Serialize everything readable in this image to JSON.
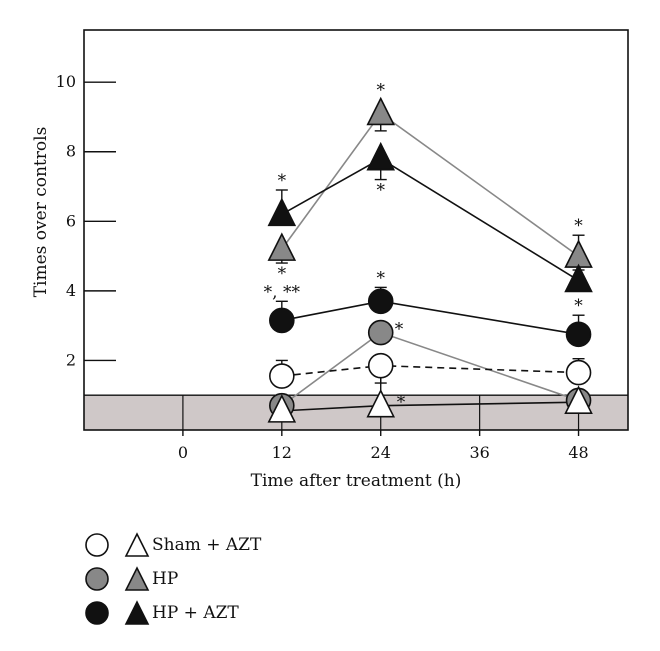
{
  "chart_data": {
    "type": "line",
    "xlabel": "Time after treatment (h)",
    "ylabel": "Times over controls",
    "xlim": [
      -12,
      54
    ],
    "ylim": [
      0,
      11.5
    ],
    "x_ticks": [
      0,
      12,
      24,
      36,
      48
    ],
    "y_ticks": [
      2,
      4,
      6,
      8,
      10
    ],
    "control_band": [
      0,
      1
    ],
    "grid": false,
    "legend_position": "bottom-left",
    "series": [
      {
        "name": "HP",
        "marker": "triangle",
        "fill": "#888888",
        "line": "#888888",
        "dash": false,
        "x": [
          12,
          24,
          48
        ],
        "y": [
          5.2,
          9.1,
          5.0
        ],
        "err": [
          0.4,
          0.5,
          0.6
        ],
        "err_dir": [
          "down",
          "down",
          "up"
        ],
        "stars": [
          "*",
          "*",
          "*"
        ],
        "star_pos": [
          "below",
          "above",
          "above"
        ]
      },
      {
        "name": "HP + AZT",
        "marker": "triangle",
        "fill": "#111111",
        "line": "#111111",
        "dash": false,
        "x": [
          12,
          24,
          48
        ],
        "y": [
          6.2,
          7.8,
          4.3
        ],
        "err": [
          0.7,
          0.6,
          0.3
        ],
        "err_dir": [
          "up",
          "down",
          "up"
        ],
        "stars": [
          "*",
          "*",
          ""
        ],
        "star_pos": [
          "above",
          "below",
          "above"
        ]
      },
      {
        "name": "HP + AZT",
        "marker": "circle",
        "fill": "#111111",
        "line": "#111111",
        "dash": false,
        "x": [
          12,
          24,
          48
        ],
        "y": [
          3.15,
          3.7,
          2.75
        ],
        "err": [
          0.55,
          0.4,
          0.55
        ],
        "err_dir": [
          "up",
          "up",
          "up"
        ],
        "stars": [
          "*, **",
          "*",
          "*"
        ],
        "star_pos": [
          "above",
          "above",
          "above"
        ]
      },
      {
        "name": "HP",
        "marker": "circle",
        "fill": "#888888",
        "line": "#888888",
        "dash": false,
        "x": [
          12,
          24,
          48
        ],
        "y": [
          0.7,
          2.8,
          0.85
        ],
        "err": [
          0,
          0,
          0
        ],
        "err_dir": [
          "up",
          "up",
          "up"
        ],
        "stars": [
          "",
          "*",
          ""
        ],
        "star_pos": [
          "above",
          "right",
          "above"
        ]
      },
      {
        "name": "Sham + AZT",
        "marker": "circle",
        "fill": "#ffffff",
        "line": "#111111",
        "dash": true,
        "x": [
          12,
          24,
          48
        ],
        "y": [
          1.55,
          1.85,
          1.65
        ],
        "err": [
          0.45,
          0.5,
          0.4
        ],
        "err_dir": [
          "up",
          "down",
          "up"
        ],
        "stars": [
          "",
          "",
          ""
        ],
        "star_pos": [
          "above",
          "above",
          "above"
        ]
      },
      {
        "name": "Sham + AZT",
        "marker": "triangle",
        "fill": "#ffffff",
        "line": "#111111",
        "dash": false,
        "x": [
          12,
          24,
          48
        ],
        "y": [
          0.55,
          0.7,
          0.8
        ],
        "err": [
          0,
          0.9,
          0
        ],
        "err_dir": [
          "up",
          "up",
          "up"
        ],
        "stars": [
          "",
          "*",
          ""
        ],
        "star_pos": [
          "above",
          "right",
          "above"
        ]
      }
    ]
  },
  "legend": [
    {
      "label": "Sham + AZT",
      "circle_fill": "#ffffff",
      "triangle_fill": "#ffffff"
    },
    {
      "label": "HP",
      "circle_fill": "#888888",
      "triangle_fill": "#888888"
    },
    {
      "label": "HP + AZT",
      "circle_fill": "#111111",
      "triangle_fill": "#111111"
    }
  ]
}
